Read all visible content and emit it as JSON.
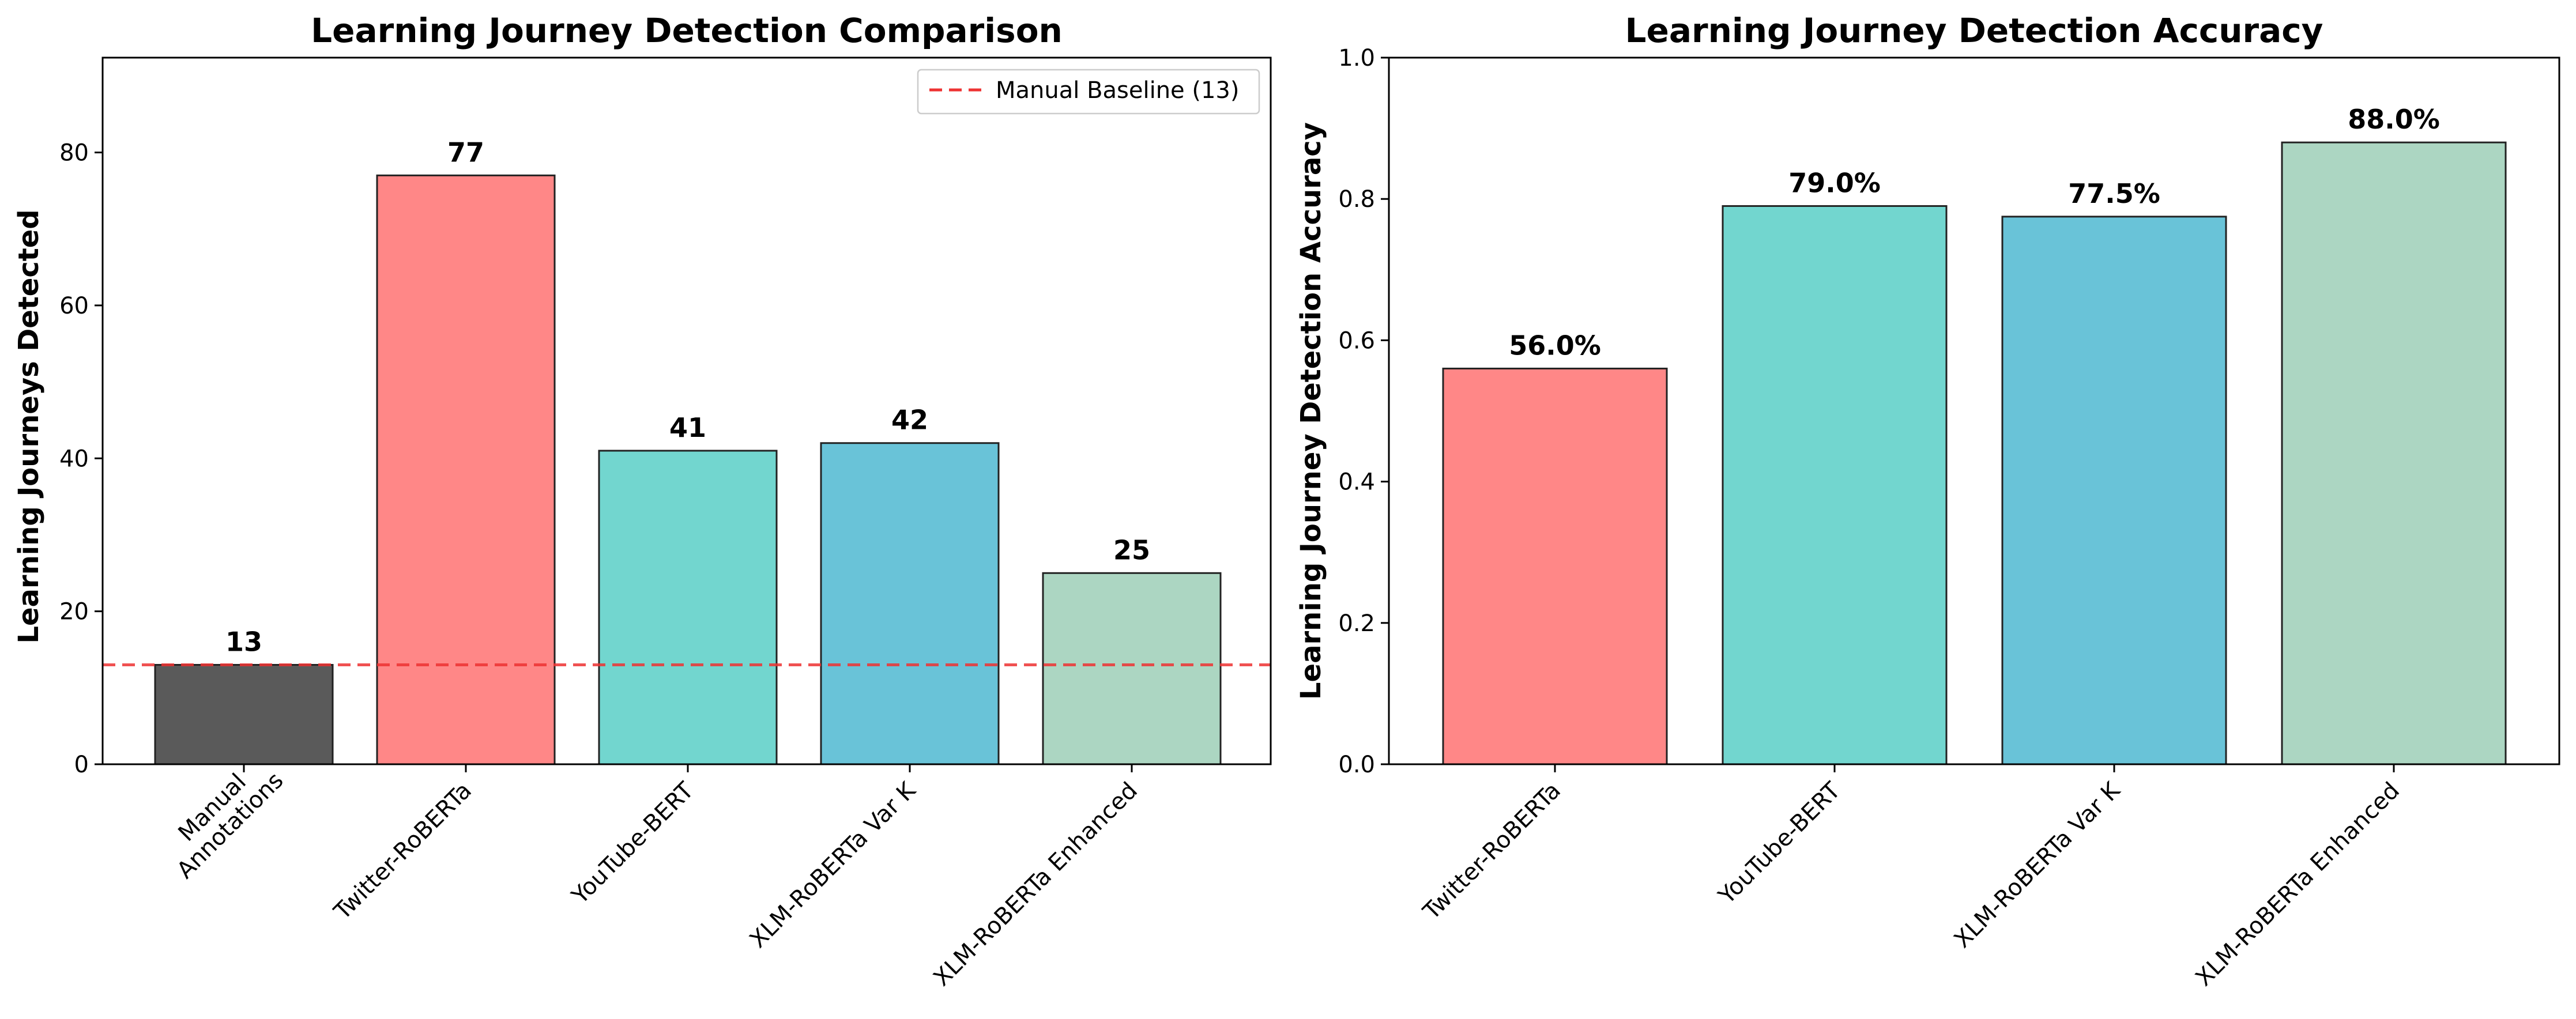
{
  "chart_data": [
    {
      "type": "bar",
      "title": "Learning Journey Detection Comparison",
      "xlabel": "",
      "ylabel": "Learning Journeys Detected",
      "ylim": [
        0,
        92.4
      ],
      "yticks": [
        0,
        20,
        40,
        60,
        80
      ],
      "categories": [
        [
          "Manual",
          "Annotations"
        ],
        [
          "Twitter-RoBERTa"
        ],
        [
          "YouTube-BERT"
        ],
        [
          "XLM-RoBERTa Var K"
        ],
        [
          "XLM-RoBERTa Enhanced"
        ]
      ],
      "values": [
        13,
        77,
        41,
        42,
        25
      ],
      "value_labels": [
        "13",
        "77",
        "41",
        "42",
        "25"
      ],
      "colors": [
        "#5a5a5a",
        "#ff8787",
        "#72d6cf",
        "#69c3d8",
        "#acd6c2"
      ],
      "baseline": {
        "value": 13,
        "label": "Manual Baseline (13)",
        "color": "#ee3333",
        "style": "dashed"
      },
      "legend_position": "top-right",
      "grid": false
    },
    {
      "type": "bar",
      "title": "Learning Journey Detection Accuracy",
      "xlabel": "",
      "ylabel": "Learning Journey Detection Accuracy",
      "ylim": [
        0,
        1.0
      ],
      "yticks": [
        "0.0",
        "0.2",
        "0.4",
        "0.6",
        "0.8",
        "1.0"
      ],
      "categories": [
        [
          "Twitter-RoBERTa"
        ],
        [
          "YouTube-BERT"
        ],
        [
          "XLM-RoBERTa Var K"
        ],
        [
          "XLM-RoBERTa Enhanced"
        ]
      ],
      "values": [
        0.56,
        0.79,
        0.775,
        0.88
      ],
      "value_labels": [
        "56.0%",
        "79.0%",
        "77.5%",
        "88.0%"
      ],
      "colors": [
        "#ff8787",
        "#72d6cf",
        "#69c3d8",
        "#acd6c2"
      ],
      "grid": false
    }
  ]
}
